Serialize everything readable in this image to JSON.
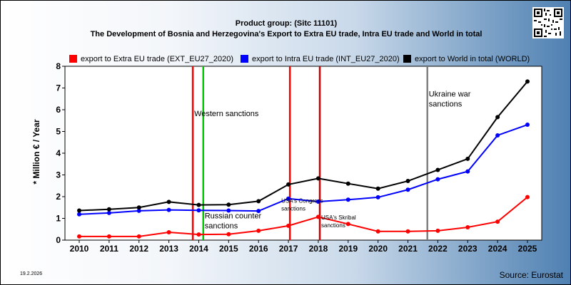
{
  "header": {
    "product_group": "Product group:  (Sitc 11101)",
    "title": "The Development of Bosnia and Herzegovina's Export to Extra EU trade, Intra EU trade and World in total"
  },
  "legend": [
    {
      "label": "export to Extra EU trade (EXT_EU27_2020)",
      "color": "#ff0000"
    },
    {
      "label": "export to Intra EU trade (INT_EU27_2020)",
      "color": "#0000ff"
    },
    {
      "label": "export to World in total (WORLD)",
      "color": "#000000"
    }
  ],
  "footer": {
    "date": "19.2.2026",
    "source": "Source: Eurostat"
  },
  "chart_data": {
    "type": "line",
    "ylabel": "* Million € / Year",
    "ylim": [
      0,
      8
    ],
    "y_ticks": [
      0,
      1,
      2,
      3,
      4,
      5,
      6,
      7,
      8
    ],
    "grid": false,
    "categories": [
      "2010",
      "2011",
      "2012",
      "2013",
      "2014",
      "2015",
      "2016",
      "2017",
      "2018",
      "2019",
      "2020",
      "2021",
      "2022",
      "2023",
      "2024",
      "2025"
    ],
    "series": [
      {
        "name": "export to Extra EU trade (EXT_EU27_2020)",
        "color": "#ff0000",
        "values": [
          0.17,
          0.17,
          0.17,
          0.36,
          0.26,
          0.27,
          0.43,
          0.66,
          1.07,
          0.74,
          0.4,
          0.4,
          0.43,
          0.59,
          0.85,
          1.98
        ]
      },
      {
        "name": "export to Intra EU trade (INT_EU27_2020)",
        "color": "#0000ff",
        "values": [
          1.19,
          1.25,
          1.35,
          1.39,
          1.37,
          1.36,
          1.34,
          1.91,
          1.77,
          1.86,
          1.97,
          2.32,
          2.8,
          3.16,
          4.82,
          5.31
        ]
      },
      {
        "name": "export to World in total (WORLD)",
        "color": "#000000",
        "values": [
          1.36,
          1.42,
          1.5,
          1.76,
          1.62,
          1.63,
          1.79,
          2.56,
          2.84,
          2.6,
          2.37,
          2.72,
          3.23,
          3.74,
          5.66,
          7.3
        ]
      }
    ],
    "events": [
      {
        "x": 2013.8,
        "color": "#ff0000",
        "label": "Western sanctions"
      },
      {
        "x": 2014.15,
        "color": "#00cc00",
        "label": "Russian counter sanctions"
      },
      {
        "x": 2017.05,
        "color": "#ff0000",
        "label": "USA's Congress sanctions"
      },
      {
        "x": 2018.05,
        "color": "#cc0000",
        "label": "USA's Skribal sanctions"
      },
      {
        "x": 2021.65,
        "color": "#808080",
        "label": "Ukraine war sanctions"
      }
    ]
  }
}
